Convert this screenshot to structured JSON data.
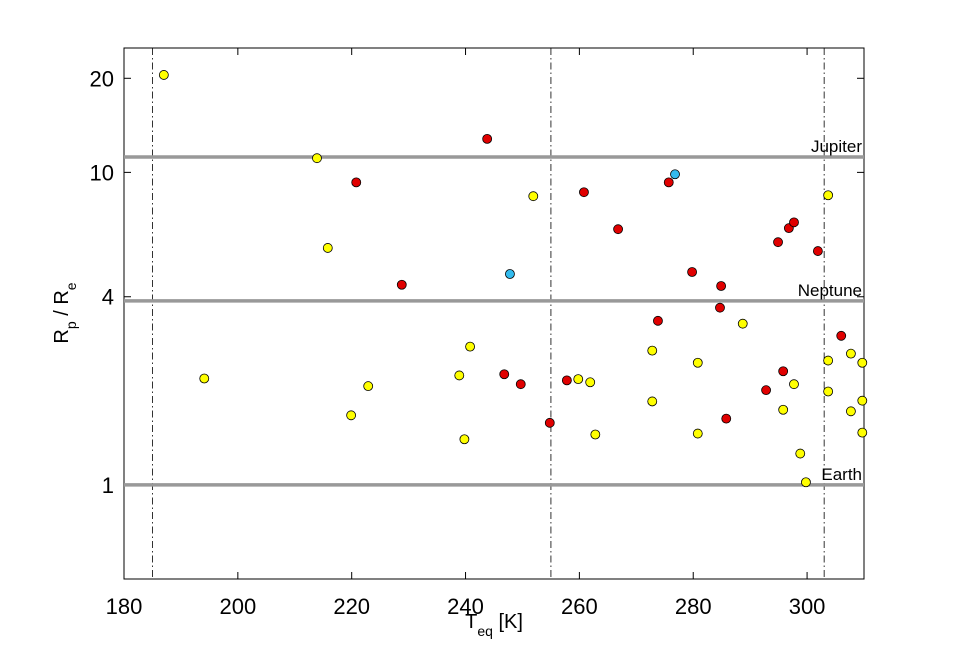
{
  "chart_data": {
    "type": "scatter",
    "xlabel": [
      {
        "text": "T"
      },
      {
        "text": "eq",
        "sub": true
      },
      {
        "text": " [K]"
      }
    ],
    "ylabel": [
      {
        "text": "R"
      },
      {
        "text": "p",
        "sub": true
      },
      {
        "text": " / R"
      },
      {
        "text": "e",
        "sub": true
      }
    ],
    "xlim": [
      180,
      310
    ],
    "xticks": [
      180,
      200,
      220,
      240,
      260,
      280,
      300
    ],
    "ylim": [
      0.5,
      25
    ],
    "yticks": [
      1,
      4,
      10,
      20
    ],
    "log_y": true,
    "grid": false,
    "hlines": [
      {
        "label": "Jupiter",
        "value": 11.2
      },
      {
        "label": "Neptune",
        "value": 3.88
      },
      {
        "label": "Earth",
        "value": 1
      }
    ],
    "vlines": [
      185,
      255,
      303
    ],
    "series": [
      {
        "color": "#ffff00",
        "x": [
          187.0,
          194.1,
          213.9,
          215.8,
          219.9,
          222.9,
          238.9,
          240.8,
          239.8,
          251.9,
          259.8,
          261.9,
          262.8,
          272.8,
          272.8,
          280.8,
          280.8,
          288.7,
          295.8,
          297.7,
          298.8,
          299.8,
          303.7,
          303.7,
          303.7,
          307.7,
          307.7,
          309.7,
          309.7,
          309.7
        ],
        "values": [
          20.5,
          2.19,
          11.1,
          5.73,
          1.67,
          2.07,
          2.24,
          2.77,
          1.4,
          8.39,
          2.18,
          2.13,
          1.45,
          2.69,
          1.85,
          2.46,
          1.46,
          3.28,
          1.74,
          2.1,
          1.26,
          1.02,
          8.45,
          2.5,
          1.99,
          2.63,
          1.72,
          2.46,
          1.86,
          1.47
        ]
      },
      {
        "color": "#e00000",
        "x": [
          243.8,
          220.8,
          228.8,
          246.8,
          249.7,
          254.8,
          257.8,
          260.8,
          266.8,
          273.8,
          275.7,
          279.8,
          284.9,
          284.7,
          285.8,
          294.9,
          296.8,
          297.7,
          301.9,
          306.0,
          295.8,
          292.8
        ],
        "values": [
          12.8,
          9.29,
          4.37,
          2.26,
          2.1,
          1.58,
          2.16,
          8.64,
          6.58,
          3.35,
          9.29,
          4.8,
          4.33,
          3.69,
          1.63,
          5.98,
          6.63,
          6.92,
          5.6,
          3.0,
          2.31,
          2.01
        ]
      },
      {
        "color": "#33bbee",
        "x": [
          247.8,
          276.8
        ],
        "values": [
          4.73,
          9.86
        ]
      }
    ]
  }
}
